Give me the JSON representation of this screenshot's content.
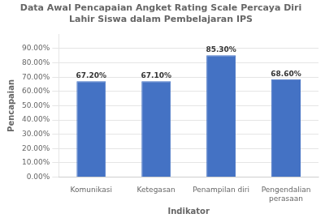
{
  "chart_data": {
    "type": "bar",
    "title": "Data Awal Pencapaian Angket Rating Scale Percaya Diri\nLahir Siswa dalam Pembelajaran IPS",
    "xlabel": "Indikator",
    "ylabel": "Pencapaian",
    "categories": [
      "Komunikasi",
      "Ketegasan",
      "Penampilan diri",
      "Pengendalian\nperasaan"
    ],
    "values": [
      67.2,
      67.1,
      85.3,
      68.6
    ],
    "value_labels": [
      "67.20%",
      "67.10%",
      "85.30%",
      "68.60%"
    ],
    "data_labels": true,
    "color": "#4472C4",
    "ylim": [
      0,
      100
    ],
    "yticks": [
      {
        "value": 0,
        "label": "0.00%"
      },
      {
        "value": 10,
        "label": "10.00%"
      },
      {
        "value": 20,
        "label": "20.00%"
      },
      {
        "value": 30,
        "label": "30.00%"
      },
      {
        "value": 40,
        "label": "40.00%"
      },
      {
        "value": 50,
        "label": "50.00%"
      },
      {
        "value": 60,
        "label": "60.00%"
      },
      {
        "value": 70,
        "label": "70.00%"
      },
      {
        "value": 80,
        "label": "80.00%"
      },
      {
        "value": 90,
        "label": "90.00%"
      }
    ],
    "grid": true
  }
}
